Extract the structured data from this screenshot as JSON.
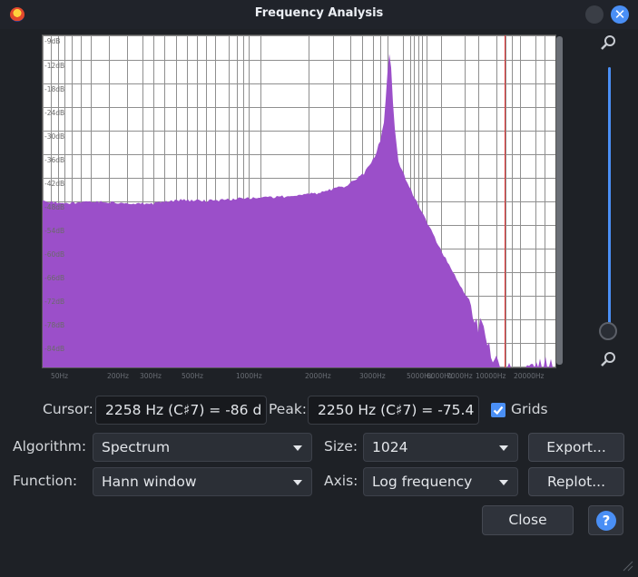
{
  "window": {
    "title": "Frequency Analysis",
    "close_glyph": "✕",
    "app_icon": "audacity-logo-icon"
  },
  "spectrum": {
    "fill_color": "#9b4fc9",
    "cursor_line_color": "#e03030",
    "y_tick_labels": [
      "-9dB",
      "-12dB",
      "-18dB",
      "-24dB",
      "-30dB",
      "-36dB",
      "-42dB",
      "-48dB",
      "-54dB",
      "-60dB",
      "-66dB",
      "-72dB",
      "-78dB",
      "-84dB",
      "-90dB"
    ],
    "x_tick_labels": [
      "50Hz",
      "200Hz",
      "300Hz",
      "500Hz",
      "1000Hz",
      "2000Hz",
      "3000Hz",
      "5000Hz",
      "6000Hz",
      "7000Hz",
      "10000Hz",
      "20000Hz"
    ]
  },
  "controls": {
    "cursor_label": "Cursor:",
    "cursor_value": "2258 Hz (C♯7) = -86 d",
    "peak_label": "Peak:",
    "peak_value": "2250 Hz (C♯7) = -75.4",
    "grids_label": "Grids",
    "grids_checked": true,
    "algorithm_label": "Algorithm:",
    "algorithm_value": "Spectrum",
    "size_label": "Size:",
    "size_value": "1024",
    "export_label": "Export...",
    "function_label": "Function:",
    "function_value": "Hann window",
    "axis_label": "Axis:",
    "axis_value": "Log frequency",
    "replot_label": "Replot...",
    "close_label": "Close",
    "help_glyph": "?"
  }
}
